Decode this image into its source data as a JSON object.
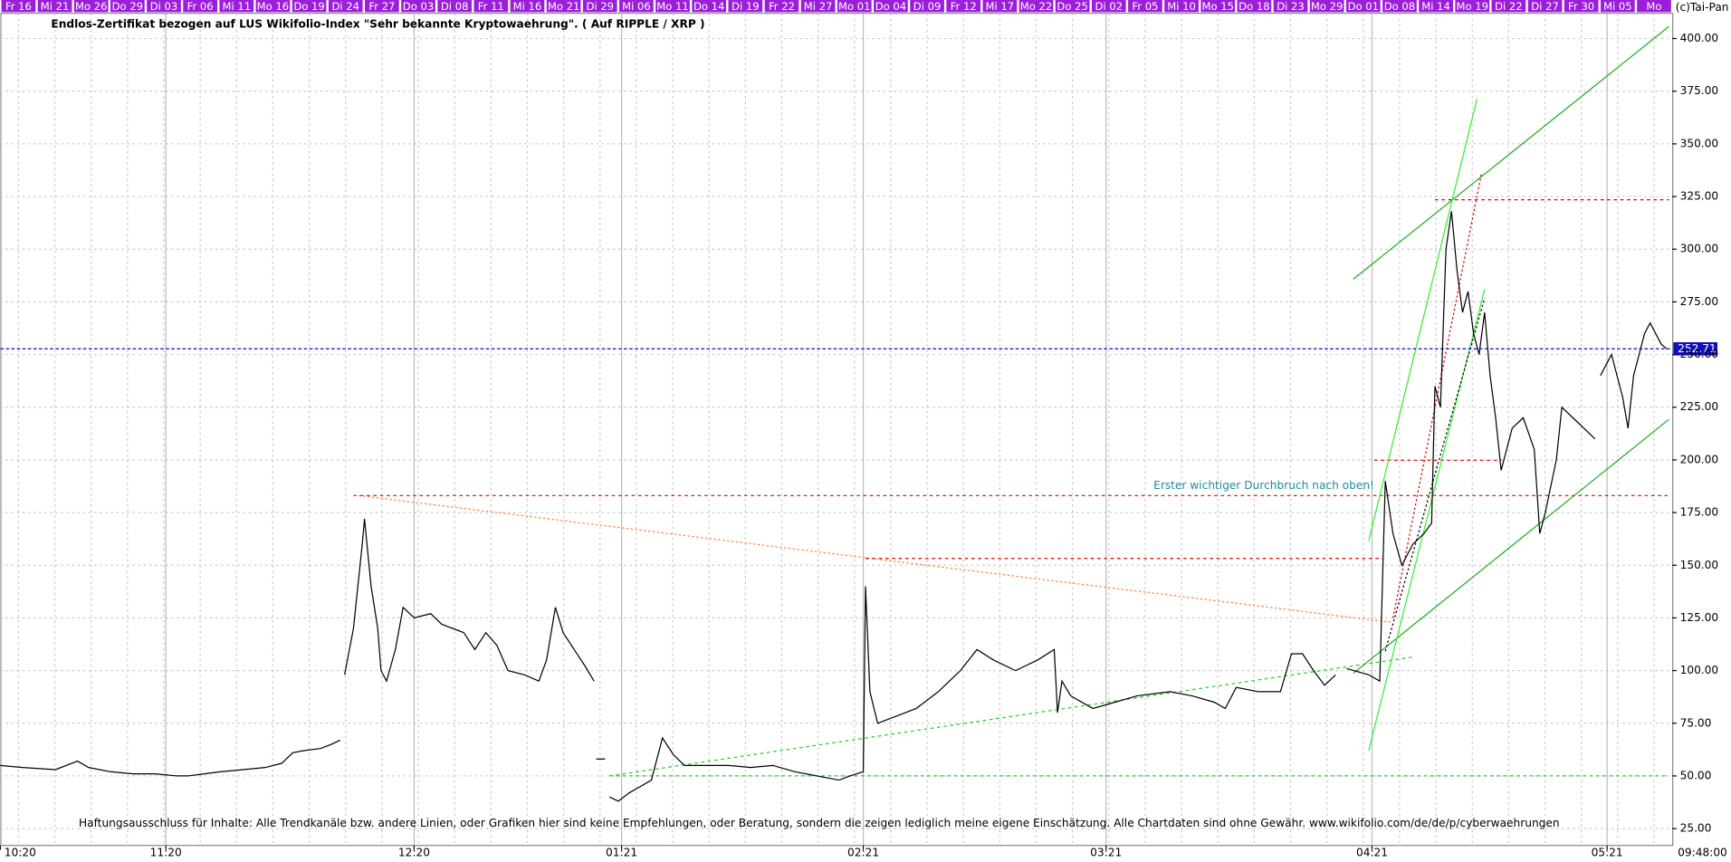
{
  "chart_data": {
    "type": "line",
    "title": "Endlos-Zertifikat bezogen auf LUS Wikifolio-Index \"Sehr bekannte Kryptowaehrung\". ( Auf RIPPLE / XRP )",
    "copyright": "(c)Tai-Pan",
    "timestamp": "09:48:00",
    "annotation": "Erster wichtiger Durchbruch nach oben!",
    "disclaimer": "Haftungsausschluss für Inhalte: Alle Trendkanäle bzw. andere Linien, oder Grafiken hier sind keine Empfehlungen, oder Beratung, sondern die zeigen lediglich meine eigene Einschätzung. Alle Chartdaten sind ohne Gewähr.  www.wikifolio.com/de/de/p/cyberwaehrungen",
    "date_labels": [
      "Fr 16",
      "Mi 21",
      "Mo 26",
      "Do 29",
      "Di 03",
      "Fr 06",
      "Mi 11",
      "Mo 16",
      "Do 19",
      "Di 24",
      "Fr 27",
      "Do 03",
      "Di 08",
      "Fr 11",
      "Mi 16",
      "Mo 21",
      "Di 29",
      "Mi 06",
      "Mo 11",
      "Do 14",
      "Di 19",
      "Fr 22",
      "Mi 27",
      "Mo 01",
      "Do 04",
      "Di 09",
      "Fr 12",
      "Mi 17",
      "Mo 22",
      "Do 25",
      "Di 02",
      "Fr 05",
      "Mi 10",
      "Mo 15",
      "Do 18",
      "Di 23",
      "Mo 29",
      "Do 01",
      "Do 08",
      "Mi 14",
      "Mo 19",
      "Di 22",
      "Di 27",
      "Fr 30",
      "Mi 05",
      "Mo"
    ],
    "last_value": 252.71,
    "xlim": [
      0,
      151.5
    ],
    "xticks": [
      {
        "value": 0,
        "label": "10:20"
      },
      {
        "value": 15,
        "label": "11:20"
      },
      {
        "value": 37.5,
        "label": "12:20"
      },
      {
        "value": 56.3,
        "label": "01:21"
      },
      {
        "value": 78.2,
        "label": "02:21"
      },
      {
        "value": 100.2,
        "label": "03:21"
      },
      {
        "value": 124.3,
        "label": "04:21"
      },
      {
        "value": 145.6,
        "label": "05:21"
      }
    ],
    "ylim": [
      17,
      412
    ],
    "yticks": [
      {
        "value": 25,
        "label": "25.00"
      },
      {
        "value": 50,
        "label": "50.00"
      },
      {
        "value": 75,
        "label": "75.00"
      },
      {
        "value": 100,
        "label": "100.00"
      },
      {
        "value": 125,
        "label": "125.00"
      },
      {
        "value": 150,
        "label": "150.00"
      },
      {
        "value": 175,
        "label": "175.00"
      },
      {
        "value": 200,
        "label": "200.00"
      },
      {
        "value": 225,
        "label": "225.00"
      },
      {
        "value": 250,
        "label": "250.00"
      },
      {
        "value": 275,
        "label": "275.00"
      },
      {
        "value": 300,
        "label": "300.00"
      },
      {
        "value": 325,
        "label": "325.00"
      },
      {
        "value": 350,
        "label": "350.00"
      },
      {
        "value": 375,
        "label": "375.00"
      },
      {
        "value": 400,
        "label": "400.00"
      }
    ],
    "grid": true,
    "series": [
      {
        "color": "#000000",
        "x": [
          0,
          2,
          5,
          7,
          8,
          10,
          12,
          14,
          16,
          17,
          18.5,
          20,
          22,
          24,
          25.5,
          26.5,
          27.5,
          29,
          30,
          30.8,
          31,
          31.2,
          32,
          32.8,
          33,
          33.6,
          34.2,
          34.5,
          35,
          35.8,
          36.5,
          37.5,
          39,
          40,
          42,
          43,
          44,
          45,
          46,
          47.5,
          48.8,
          49.5,
          50.3,
          51,
          52,
          53,
          53.8,
          53.9,
          54,
          54.8,
          54.9,
          55.2,
          56,
          57,
          58,
          59,
          60,
          61,
          62,
          64,
          66,
          68,
          70,
          72,
          74,
          76,
          77,
          78.2,
          78.4,
          78.8,
          79.5,
          81,
          83,
          85,
          86,
          87,
          88.5,
          90,
          92,
          94,
          95.5,
          95.8,
          96.2,
          97,
          99,
          101,
          103,
          106,
          108,
          110,
          111,
          112,
          114,
          116,
          117,
          118,
          119,
          120,
          121,
          121.5,
          122,
          124,
          125,
          125.5,
          126.2,
          127,
          128,
          129,
          129.7,
          130,
          130.5,
          131,
          131.5,
          132,
          132.5,
          133,
          133.5,
          134,
          134.5,
          135,
          135.5,
          136,
          137,
          138,
          139,
          139.5,
          140,
          141,
          141.5,
          142.5,
          143.5,
          144.5,
          144.7,
          145,
          146,
          147,
          147.5,
          148,
          149,
          149.5,
          150.5,
          151
        ],
        "values": [
          55,
          54,
          53,
          57,
          54,
          52,
          51,
          51,
          50,
          50,
          51,
          52,
          53,
          54,
          56,
          61,
          62,
          63,
          65,
          67,
          null,
          98,
          120,
          160,
          172,
          140,
          120,
          100,
          95,
          110,
          130,
          125,
          127,
          122,
          118,
          110,
          118,
          112,
          100,
          98,
          95,
          105,
          130,
          118,
          110,
          102,
          95,
          null,
          58,
          58,
          null,
          40,
          38,
          42,
          45,
          48,
          68,
          60,
          55,
          55,
          55,
          54,
          55,
          52,
          50,
          48,
          50,
          52,
          140,
          90,
          75,
          78,
          82,
          90,
          95,
          100,
          110,
          105,
          100,
          105,
          110,
          80,
          95,
          88,
          82,
          85,
          88,
          90,
          88,
          85,
          82,
          92,
          90,
          90,
          108,
          108,
          100,
          93,
          98,
          null,
          101,
          98,
          95,
          190,
          165,
          150,
          160,
          165,
          170,
          235,
          225,
          300,
          318,
          290,
          270,
          280,
          260,
          250,
          270,
          240,
          220,
          195,
          215,
          220,
          205,
          165,
          175,
          200,
          225,
          220,
          215,
          210,
          null,
          240,
          250,
          230,
          215,
          240,
          260,
          265,
          255,
          252.71
        ]
      }
    ]
  }
}
